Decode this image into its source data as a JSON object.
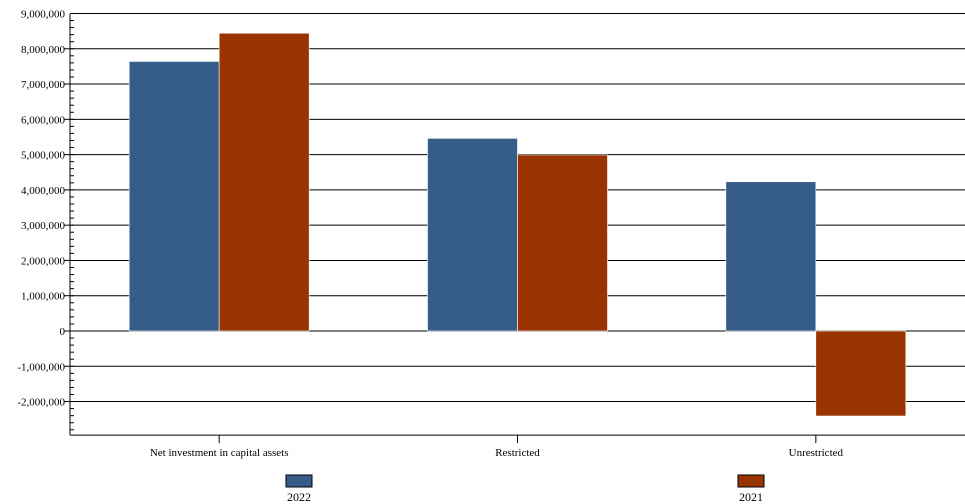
{
  "chart_data": {
    "type": "bar",
    "categories": [
      "Net investment in capital assets",
      "Restricted",
      "Unrestricted"
    ],
    "series": [
      {
        "name": "2022",
        "values": [
          7640000,
          5460000,
          4230000
        ],
        "color": "#365C8A"
      },
      {
        "name": "2021",
        "values": [
          8440000,
          4990000,
          -2410000
        ],
        "color": "#993300"
      }
    ],
    "yticks": [
      "9,000,000",
      "8,000,000",
      "7,000,000",
      "6,000,000",
      "5,000,000",
      "4,000,000",
      "3,000,000",
      "2,000,000",
      "1,000,000",
      "0",
      "-1,000,000",
      "-2,000,000"
    ],
    "ylim": [
      -2950000,
      9000000
    ],
    "grid": true,
    "legend_position": "bottom",
    "title": "",
    "xlabel": "",
    "ylabel": ""
  }
}
